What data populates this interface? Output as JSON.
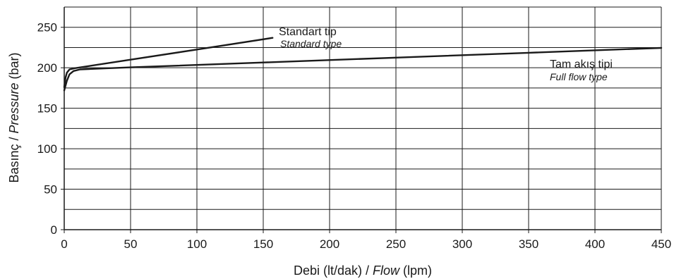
{
  "chart_data": {
    "type": "line",
    "xlabel": {
      "main": "Debi (lt/dak) / ",
      "italic": "Flow",
      "tail": " (lpm)"
    },
    "ylabel": {
      "main": "Basınç / ",
      "italic": "Pressure",
      "tail": " (bar)"
    },
    "xlim": [
      0,
      450
    ],
    "ylim": [
      0,
      275
    ],
    "x_ticks": [
      0,
      50,
      100,
      150,
      200,
      250,
      300,
      350,
      400,
      450
    ],
    "y_ticks": [
      0,
      50,
      100,
      150,
      200,
      250
    ],
    "grid": true,
    "series": [
      {
        "name": "Standart tip",
        "name_en": "Standard type",
        "color": "#1a1a1a",
        "points": [
          [
            0,
            176
          ],
          [
            1,
            188
          ],
          [
            2,
            194
          ],
          [
            4,
            198
          ],
          [
            8,
            199.5
          ],
          [
            50,
            210
          ],
          [
            100,
            222.5
          ],
          [
            157,
            237
          ]
        ]
      },
      {
        "name": "Tam akış tipi",
        "name_en": "Full flow type",
        "color": "#1a1a1a",
        "points": [
          [
            0,
            172
          ],
          [
            2,
            184
          ],
          [
            4,
            192
          ],
          [
            7,
            196
          ],
          [
            12,
            198
          ],
          [
            50,
            200.5
          ],
          [
            150,
            206.5
          ],
          [
            250,
            212.5
          ],
          [
            350,
            218.5
          ],
          [
            450,
            224.5
          ]
        ]
      }
    ]
  }
}
